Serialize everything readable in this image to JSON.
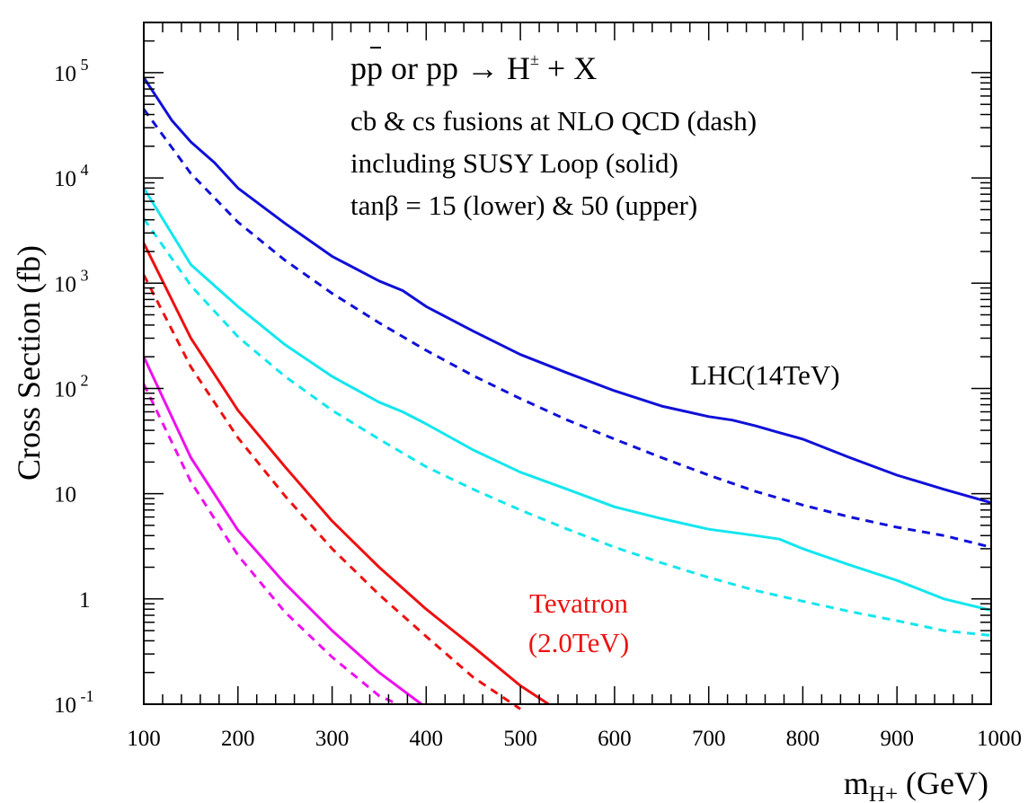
{
  "chart_data": {
    "type": "line",
    "title": "",
    "ylabel": "Cross Section (fb)",
    "xlabel": {
      "main": "m",
      "sub": "H+",
      "unit": " (GeV)"
    },
    "xlim": [
      100,
      1000
    ],
    "ylim": [
      0.1,
      300000
    ],
    "yscale": "log",
    "grid": false,
    "x_ticks": [
      "100",
      "200",
      "300",
      "400",
      "500",
      "600",
      "700",
      "800",
      "900",
      "1000"
    ],
    "y_ticks": [
      {
        "base": "10",
        "exp": " -1",
        "value": 0.1
      },
      {
        "base": "1",
        "exp": "",
        "value": 1
      },
      {
        "base": "10",
        "exp": "",
        "value": 10
      },
      {
        "base": "10",
        "exp": " 2",
        "value": 100
      },
      {
        "base": "10",
        "exp": " 3",
        "value": 1000
      },
      {
        "base": "10",
        "exp": " 4",
        "value": 10000
      },
      {
        "base": "10",
        "exp": " 5",
        "value": 100000
      }
    ],
    "annotations": {
      "process": {
        "pp": "pp",
        "bar_p": "p",
        "or_pp": " or pp ",
        "arrow": "→",
        "H": " H",
        "pm": "±",
        "rest": " + X"
      },
      "line1": "cb & cs fusions at NLO QCD (dash)",
      "line2": "including SUSY Loop (solid)",
      "line3": "tanβ = 15 (lower) & 50 (upper)",
      "lhc": "LHC(14TeV)",
      "tevatron1": "Tevatron",
      "tevatron2": "(2.0TeV)"
    },
    "colors": {
      "lhc_upper": "#1010d8",
      "lhc_lower": "#14e6ee",
      "tev_upper": "#ee1010",
      "tev_lower": "#ee10ee",
      "axis": "#000000"
    },
    "series": [
      {
        "color": "#1010d8",
        "dash": false,
        "x": [
          100,
          130,
          150,
          175,
          200,
          250,
          300,
          350,
          375,
          400,
          450,
          500,
          550,
          600,
          650,
          700,
          725,
          750,
          775,
          800,
          850,
          900,
          950,
          1000
        ],
        "y": [
          90000,
          35000,
          22000,
          14000,
          8000,
          3700,
          1800,
          1050,
          850,
          600,
          350,
          210,
          140,
          95,
          68,
          54,
          50,
          44,
          38,
          33,
          22,
          15,
          11,
          8.2
        ]
      },
      {
        "color": "#1010d8",
        "dash": true,
        "x": [
          100,
          150,
          200,
          250,
          300,
          350,
          400,
          450,
          500,
          550,
          600,
          650,
          700,
          750,
          800,
          850,
          900,
          950,
          1000
        ],
        "y": [
          45000,
          11000,
          3800,
          1650,
          800,
          420,
          230,
          132,
          80,
          50,
          33,
          22,
          15,
          10.5,
          7.8,
          6,
          4.8,
          4,
          3.1
        ]
      },
      {
        "color": "#14e6ee",
        "dash": false,
        "x": [
          100,
          150,
          200,
          250,
          300,
          350,
          375,
          400,
          450,
          500,
          550,
          600,
          650,
          700,
          750,
          775,
          800,
          850,
          900,
          950,
          1000
        ],
        "y": [
          8000,
          1500,
          600,
          260,
          130,
          74,
          60,
          46,
          26,
          16,
          11,
          7.5,
          5.8,
          4.6,
          4,
          3.7,
          3,
          2.1,
          1.5,
          1,
          0.78
        ]
      },
      {
        "color": "#14e6ee",
        "dash": true,
        "x": [
          100,
          150,
          200,
          250,
          300,
          350,
          400,
          450,
          500,
          550,
          600,
          650,
          700,
          750,
          800,
          850,
          900,
          950,
          1000
        ],
        "y": [
          4100,
          950,
          310,
          130,
          62,
          33,
          18,
          11,
          7,
          4.6,
          3.1,
          2.2,
          1.6,
          1.2,
          0.95,
          0.76,
          0.62,
          0.5,
          0.45
        ]
      },
      {
        "color": "#ee1010",
        "dash": false,
        "x": [
          100,
          150,
          200,
          250,
          300,
          350,
          400,
          450,
          500,
          530
        ],
        "y": [
          2400,
          300,
          62,
          18,
          5.5,
          2,
          0.8,
          0.35,
          0.15,
          0.1
        ]
      },
      {
        "color": "#ee1010",
        "dash": true,
        "x": [
          100,
          150,
          200,
          250,
          300,
          350,
          400,
          450,
          500
        ],
        "y": [
          1200,
          160,
          34,
          9.5,
          3,
          1.1,
          0.44,
          0.18,
          0.09
        ]
      },
      {
        "color": "#ee10ee",
        "dash": false,
        "x": [
          100,
          150,
          200,
          250,
          300,
          350,
          395
        ],
        "y": [
          200,
          22,
          4.5,
          1.4,
          0.5,
          0.2,
          0.1
        ]
      },
      {
        "color": "#ee10ee",
        "dash": true,
        "x": [
          100,
          150,
          200,
          250,
          300,
          350,
          370
        ],
        "y": [
          110,
          13,
          2.6,
          0.75,
          0.28,
          0.12,
          0.1
        ]
      }
    ]
  }
}
